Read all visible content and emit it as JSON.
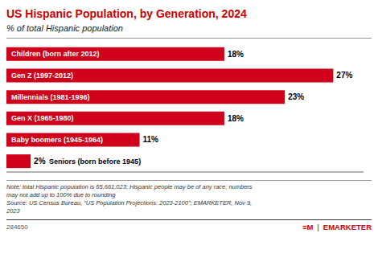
{
  "chart_data": {
    "type": "bar",
    "orientation": "horizontal",
    "title": "US Hispanic Population, by Generation, 2024",
    "subtitle": "% of total Hispanic population",
    "categories": [
      "Children (born after 2012)",
      "Gen Z (1997-2012)",
      "Millennials (1981-1996)",
      "Gen X (1965-1980)",
      "Baby boomers (1945-1964)",
      "Seniors (born before 1945)"
    ],
    "values": [
      18,
      27,
      23,
      18,
      11,
      2
    ],
    "value_labels": [
      "18%",
      "27%",
      "23%",
      "18%",
      "11%",
      "2%"
    ],
    "data_labels": true,
    "color": "#D0021B",
    "xlim": [
      0,
      29.5
    ],
    "tick_labels": false,
    "grid": false,
    "annotations": [
      "Note: total Hispanic population is 65,661,023; Hispanic people may be of any race; numbers",
      "may not add up to 100% due to rounding",
      "Source: US Census Bureau, “US Population Projections: 2023-2100”; EMARKETER, Nov 9,",
      "2023",
      "284650",
      "≡M",
      "|",
      "EMARKETER"
    ]
  }
}
